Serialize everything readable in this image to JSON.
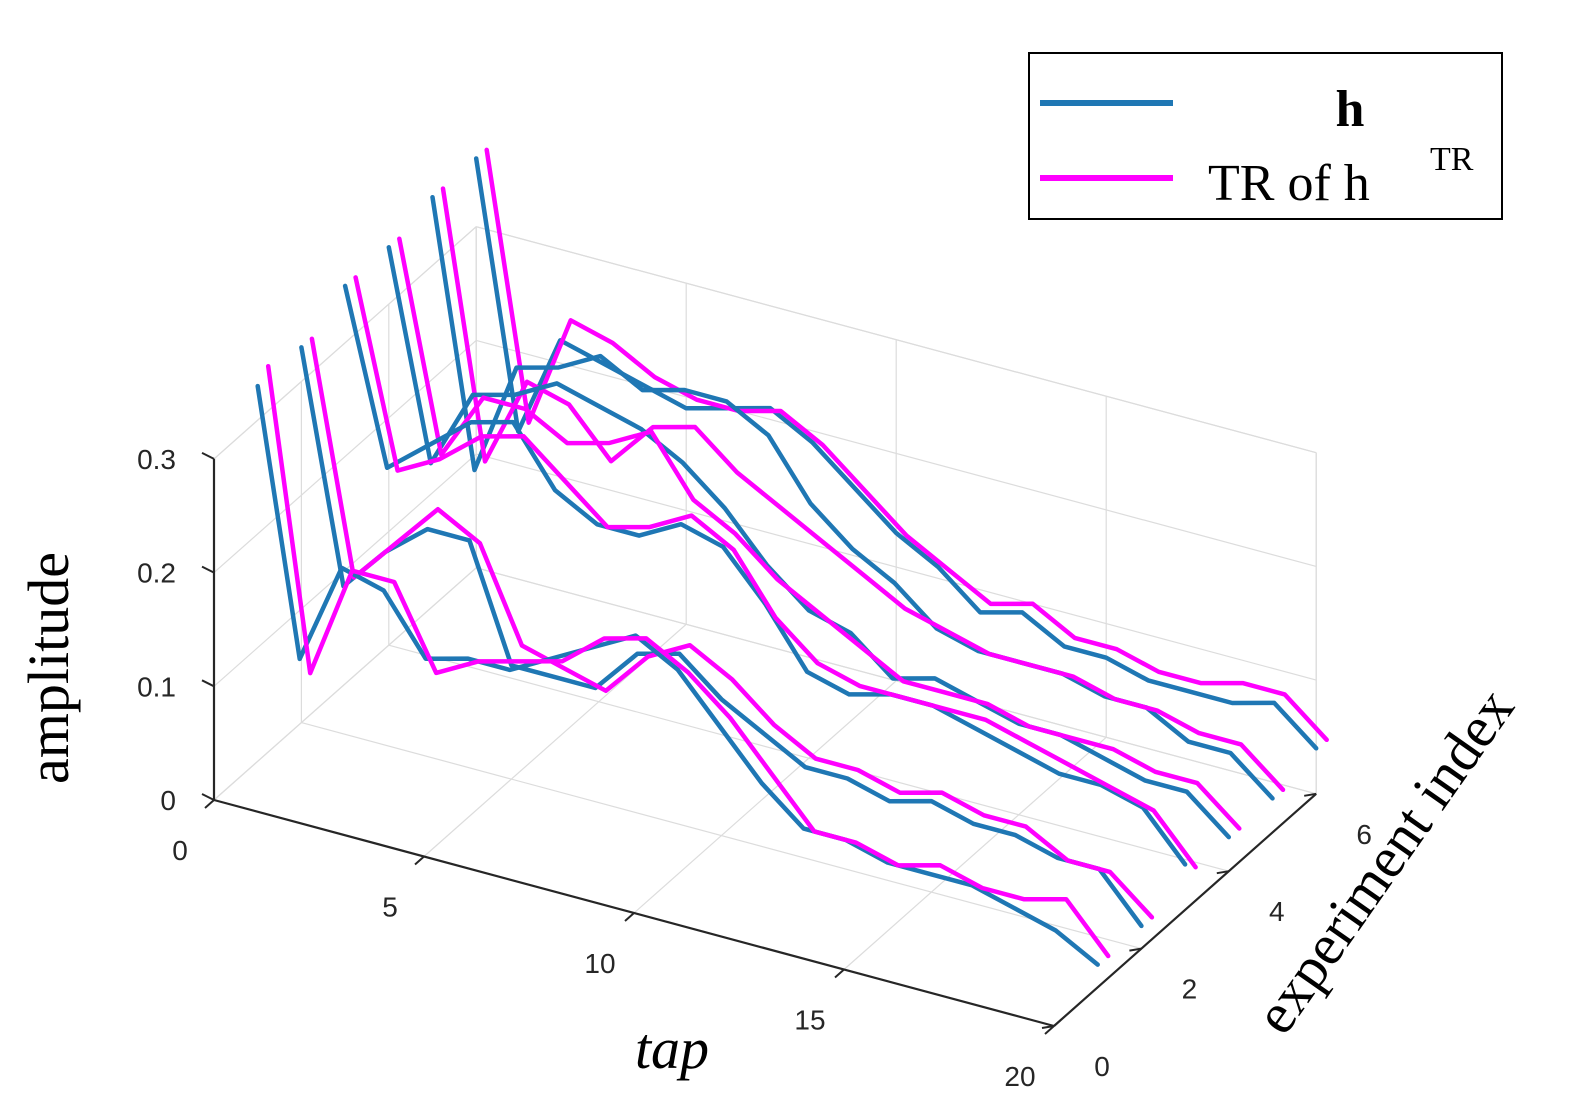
{
  "chart_data": {
    "type": "line",
    "projection": "3d",
    "title": "",
    "xlabel": "tap",
    "ylabel": "experiment index",
    "zlabel": "amplitude",
    "xlim": [
      0,
      20
    ],
    "ylim": [
      0,
      6
    ],
    "zlim": [
      0,
      0.3
    ],
    "xticks": [
      "0",
      "5",
      "10",
      "15",
      "20"
    ],
    "yticks": [
      "0",
      "2",
      "4",
      "6"
    ],
    "zticks": [
      "0",
      "0.1",
      "0.2",
      "0.3"
    ],
    "grid": true,
    "legend_position": "top-right",
    "legend": [
      {
        "label": "h",
        "color": "#1f77b4"
      },
      {
        "label": "TR of h",
        "sup": "TR",
        "color": "#ff00ff"
      }
    ],
    "series": [
      {
        "name": "h",
        "experiment": 1,
        "color": "#1f77b4",
        "values": [
          0.33,
          0.1,
          0.19,
          0.18,
          0.13,
          0.14,
          0.14,
          0.16,
          0.18,
          0.2,
          0.18,
          0.14,
          0.1,
          0.07,
          0.07,
          0.06,
          0.06,
          0.06,
          0.05,
          0.04,
          0.02
        ]
      },
      {
        "name": "TR of h",
        "experiment": 1,
        "color": "#ff00ff",
        "values": [
          0.35,
          0.09,
          0.19,
          0.19,
          0.12,
          0.14,
          0.15,
          0.16,
          0.19,
          0.2,
          0.18,
          0.15,
          0.11,
          0.07,
          0.07,
          0.06,
          0.07,
          0.06,
          0.06,
          0.07,
          0.03
        ]
      },
      {
        "name": "h",
        "experiment": 2,
        "color": "#1f77b4",
        "values": [
          0.33,
          0.13,
          0.17,
          0.2,
          0.2,
          0.1,
          0.1,
          0.1,
          0.14,
          0.15,
          0.12,
          0.1,
          0.08,
          0.08,
          0.07,
          0.08,
          0.07,
          0.07,
          0.06,
          0.06,
          0.02
        ]
      },
      {
        "name": "TR of h",
        "experiment": 2,
        "color": "#ff00ff",
        "values": [
          0.34,
          0.14,
          0.18,
          0.22,
          0.2,
          0.12,
          0.11,
          0.1,
          0.14,
          0.16,
          0.14,
          0.11,
          0.09,
          0.09,
          0.08,
          0.09,
          0.08,
          0.08,
          0.06,
          0.06,
          0.03
        ]
      },
      {
        "name": "h",
        "experiment": 3,
        "color": "#1f77b4",
        "values": [
          0.35,
          0.2,
          0.23,
          0.26,
          0.27,
          0.22,
          0.2,
          0.2,
          0.22,
          0.21,
          0.17,
          0.12,
          0.11,
          0.12,
          0.12,
          0.11,
          0.1,
          0.09,
          0.09,
          0.08,
          0.04
        ]
      },
      {
        "name": "TR of h",
        "experiment": 3,
        "color": "#ff00ff",
        "values": [
          0.36,
          0.2,
          0.22,
          0.25,
          0.26,
          0.23,
          0.2,
          0.21,
          0.23,
          0.21,
          0.16,
          0.13,
          0.12,
          0.12,
          0.12,
          0.12,
          0.11,
          0.1,
          0.09,
          0.08,
          0.04
        ]
      },
      {
        "name": "h",
        "experiment": 4,
        "color": "#1f77b4",
        "values": [
          0.35,
          0.17,
          0.24,
          0.25,
          0.27,
          0.26,
          0.25,
          0.23,
          0.2,
          0.16,
          0.13,
          0.12,
          0.09,
          0.1,
          0.09,
          0.08,
          0.08,
          0.07,
          0.06,
          0.06,
          0.03
        ]
      },
      {
        "name": "TR of h",
        "experiment": 4,
        "color": "#ff00ff",
        "values": [
          0.36,
          0.18,
          0.24,
          0.24,
          0.22,
          0.23,
          0.25,
          0.2,
          0.18,
          0.15,
          0.13,
          0.11,
          0.09,
          0.09,
          0.09,
          0.08,
          0.08,
          0.08,
          0.07,
          0.07,
          0.04
        ]
      },
      {
        "name": "h",
        "experiment": 5,
        "color": "#1f77b4",
        "values": [
          0.36,
          0.13,
          0.23,
          0.24,
          0.26,
          0.24,
          0.25,
          0.25,
          0.23,
          0.18,
          0.15,
          0.13,
          0.1,
          0.09,
          0.09,
          0.09,
          0.08,
          0.08,
          0.06,
          0.06,
          0.03
        ]
      },
      {
        "name": "TR of h",
        "experiment": 5,
        "color": "#ff00ff",
        "values": [
          0.37,
          0.14,
          0.22,
          0.21,
          0.17,
          0.21,
          0.22,
          0.19,
          0.17,
          0.15,
          0.13,
          0.11,
          0.1,
          0.09,
          0.09,
          0.09,
          0.08,
          0.08,
          0.07,
          0.07,
          0.04
        ]
      },
      {
        "name": "h",
        "experiment": 6,
        "color": "#1f77b4",
        "values": [
          0.36,
          0.13,
          0.22,
          0.21,
          0.2,
          0.19,
          0.2,
          0.21,
          0.19,
          0.16,
          0.13,
          0.11,
          0.08,
          0.09,
          0.07,
          0.07,
          0.06,
          0.06,
          0.06,
          0.07,
          0.04
        ]
      },
      {
        "name": "TR of h",
        "experiment": 6,
        "color": "#ff00ff",
        "values": [
          0.37,
          0.14,
          0.24,
          0.23,
          0.21,
          0.2,
          0.2,
          0.21,
          0.19,
          0.16,
          0.13,
          0.11,
          0.09,
          0.1,
          0.08,
          0.08,
          0.07,
          0.07,
          0.08,
          0.08,
          0.05
        ]
      }
    ]
  }
}
